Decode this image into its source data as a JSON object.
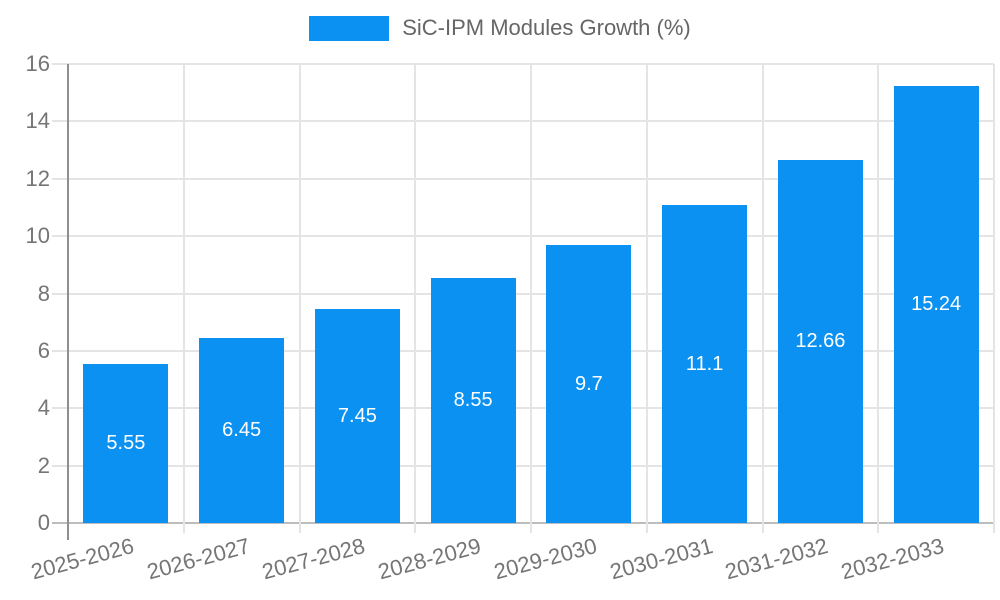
{
  "chart_data": {
    "type": "bar",
    "title": "SiC-IPM Modules Growth (%)",
    "categories": [
      "2025-2026",
      "2026-2027",
      "2027-2028",
      "2028-2029",
      "2029-2030",
      "2030-2031",
      "2031-2032",
      "2032-2033"
    ],
    "values": [
      5.55,
      6.45,
      7.45,
      8.55,
      9.7,
      11.1,
      12.66,
      15.24
    ],
    "value_labels": [
      "5.55",
      "6.45",
      "7.45",
      "8.55",
      "9.7",
      "11.1",
      "12.66",
      "15.24"
    ],
    "xlabel": "",
    "ylabel": "",
    "ylim": [
      0,
      16
    ],
    "yticks": [
      0,
      2,
      4,
      6,
      8,
      10,
      12,
      14,
      16
    ],
    "grid": true,
    "legend_position": "top",
    "bar_color": "#0a91f2",
    "value_label_color": "#ffffff",
    "tick_label_color": "#757575",
    "legend_text_color": "#666666",
    "gridline_color": "#e4e4e4",
    "axis_line_color": "#8f8f8f",
    "baseline_color": "#bdbdbd"
  }
}
